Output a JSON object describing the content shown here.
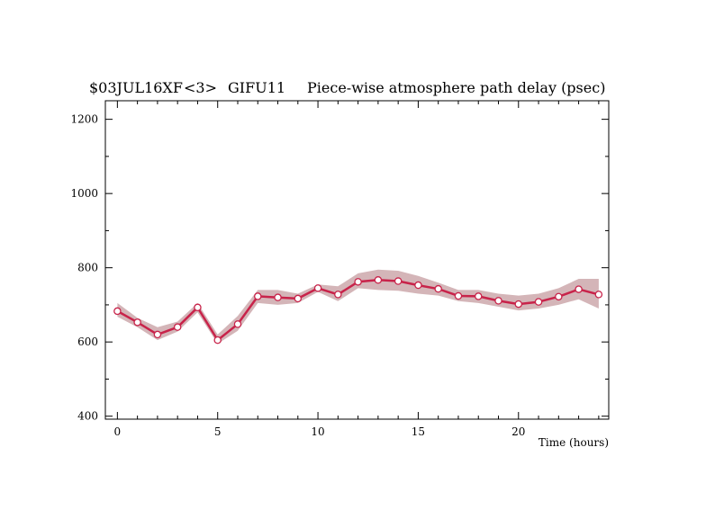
{
  "chart_data": {
    "type": "line",
    "title_parts": [
      "$03JUL16XF",
      "<3>",
      "GIFU11",
      "Piece-wise atmosphere path delay (psec)"
    ],
    "xlabel": "Time (hours)",
    "ylabel": "",
    "xlim": [
      -0.6,
      24.5
    ],
    "ylim": [
      392,
      1250
    ],
    "xticks": [
      0,
      5,
      10,
      15,
      20
    ],
    "yticks": [
      400,
      600,
      800,
      1000,
      1200
    ],
    "grid": false,
    "series": [
      {
        "x": [
          0,
          1,
          2,
          3,
          4,
          5,
          6,
          7,
          8,
          9,
          10,
          11,
          12,
          13,
          14,
          15,
          16,
          17,
          18,
          19,
          20,
          21,
          22,
          23,
          24
        ],
        "y": [
          683,
          653,
          620,
          640,
          693,
          605,
          648,
          723,
          720,
          717,
          745,
          728,
          762,
          767,
          764,
          753,
          743,
          724,
          723,
          711,
          702,
          708,
          722,
          742,
          728
        ],
        "band_upper": [
          705,
          665,
          640,
          655,
          705,
          620,
          670,
          740,
          740,
          730,
          755,
          750,
          785,
          795,
          792,
          778,
          760,
          740,
          740,
          730,
          725,
          730,
          745,
          770,
          770
        ],
        "band_lower": [
          668,
          640,
          605,
          628,
          680,
          595,
          630,
          705,
          700,
          705,
          735,
          710,
          745,
          740,
          738,
          730,
          725,
          710,
          705,
          695,
          685,
          690,
          700,
          715,
          690
        ]
      }
    ],
    "colors": {
      "line": "#c8234a",
      "band": "#d4b5b8",
      "marker_fill": "#ffffff",
      "axis": "#000000"
    }
  }
}
